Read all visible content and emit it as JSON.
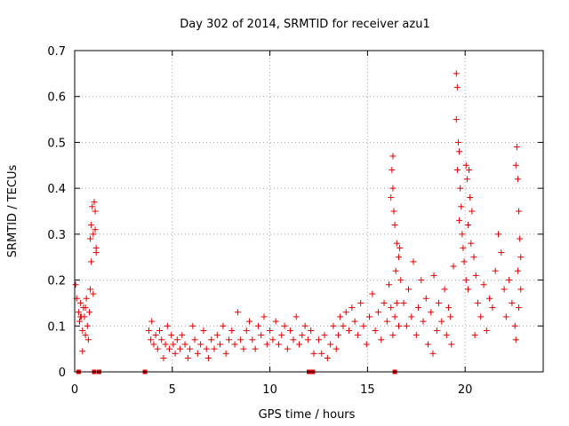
{
  "chart_data": {
    "type": "scatter",
    "title": "Day 302 of 2014, SRMTID for receiver azu1",
    "xlabel": "GPS time / hours",
    "ylabel": "SRMTID / TECUs",
    "xlim": [
      0,
      24
    ],
    "ylim": [
      0,
      0.7
    ],
    "xticks": [
      "0",
      "5",
      "10",
      "15",
      "20"
    ],
    "yticks": [
      "0",
      "0.1",
      "0.2",
      "0.3",
      "0.4",
      "0.5",
      "0.6",
      "0.7"
    ],
    "grid": true,
    "marker": "+",
    "color": "#e00000",
    "series": [
      {
        "name": "SRMTID",
        "points": [
          [
            0.05,
            0.19
          ],
          [
            0.1,
            0.16
          ],
          [
            0.2,
            0.13
          ],
          [
            0.25,
            0.11
          ],
          [
            0.3,
            0.15
          ],
          [
            0.35,
            0.12
          ],
          [
            0.4,
            0.09
          ],
          [
            0.45,
            0.14
          ],
          [
            0.5,
            0.12
          ],
          [
            0.55,
            0.08
          ],
          [
            0.6,
            0.16
          ],
          [
            0.65,
            0.1
          ],
          [
            0.7,
            0.07
          ],
          [
            0.75,
            0.13
          ],
          [
            0.8,
            0.18
          ],
          [
            0.85,
            0.24
          ],
          [
            0.8,
            0.29
          ],
          [
            0.85,
            0.32
          ],
          [
            0.9,
            0.36
          ],
          [
            0.95,
            0.3
          ],
          [
            1.0,
            0.37
          ],
          [
            1.05,
            0.35
          ],
          [
            1.1,
            0.27
          ],
          [
            1.1,
            0.26
          ],
          [
            1.05,
            0.31
          ],
          [
            0.95,
            0.17
          ],
          [
            0.4,
            0.045
          ],
          [
            0.3,
            0.12
          ],
          [
            0.55,
            0.14
          ],
          [
            3.8,
            0.09
          ],
          [
            3.9,
            0.07
          ],
          [
            3.95,
            0.11
          ],
          [
            4.05,
            0.06
          ],
          [
            4.15,
            0.08
          ],
          [
            4.25,
            0.05
          ],
          [
            4.35,
            0.09
          ],
          [
            4.45,
            0.07
          ],
          [
            4.55,
            0.03
          ],
          [
            4.65,
            0.06
          ],
          [
            4.75,
            0.1
          ],
          [
            4.85,
            0.05
          ],
          [
            4.95,
            0.08
          ],
          [
            5.05,
            0.06
          ],
          [
            5.15,
            0.04
          ],
          [
            5.25,
            0.07
          ],
          [
            5.4,
            0.05
          ],
          [
            5.5,
            0.08
          ],
          [
            5.65,
            0.06
          ],
          [
            5.8,
            0.03
          ],
          [
            5.9,
            0.05
          ],
          [
            6.05,
            0.1
          ],
          [
            6.15,
            0.07
          ],
          [
            6.3,
            0.04
          ],
          [
            6.45,
            0.06
          ],
          [
            6.6,
            0.09
          ],
          [
            6.75,
            0.05
          ],
          [
            6.85,
            0.03
          ],
          [
            7.0,
            0.07
          ],
          [
            7.15,
            0.05
          ],
          [
            7.3,
            0.08
          ],
          [
            7.45,
            0.06
          ],
          [
            7.6,
            0.1
          ],
          [
            7.75,
            0.04
          ],
          [
            7.9,
            0.07
          ],
          [
            8.05,
            0.09
          ],
          [
            8.2,
            0.06
          ],
          [
            8.35,
            0.13
          ],
          [
            8.5,
            0.07
          ],
          [
            8.65,
            0.05
          ],
          [
            8.8,
            0.09
          ],
          [
            8.95,
            0.11
          ],
          [
            9.1,
            0.07
          ],
          [
            9.25,
            0.05
          ],
          [
            9.4,
            0.1
          ],
          [
            9.55,
            0.08
          ],
          [
            9.7,
            0.12
          ],
          [
            9.85,
            0.06
          ],
          [
            10.0,
            0.09
          ],
          [
            10.15,
            0.07
          ],
          [
            10.3,
            0.11
          ],
          [
            10.45,
            0.06
          ],
          [
            10.6,
            0.08
          ],
          [
            10.75,
            0.1
          ],
          [
            10.9,
            0.05
          ],
          [
            11.05,
            0.09
          ],
          [
            11.2,
            0.07
          ],
          [
            11.35,
            0.12
          ],
          [
            11.5,
            0.06
          ],
          [
            11.65,
            0.08
          ],
          [
            11.8,
            0.1
          ],
          [
            11.95,
            0.07
          ],
          [
            12.1,
            0.09
          ],
          [
            12.25,
            0.04
          ],
          [
            12.5,
            0.07
          ],
          [
            12.65,
            0.04
          ],
          [
            12.8,
            0.08
          ],
          [
            12.95,
            0.03
          ],
          [
            13.1,
            0.06
          ],
          [
            13.25,
            0.1
          ],
          [
            13.4,
            0.05
          ],
          [
            13.5,
            0.08
          ],
          [
            13.6,
            0.12
          ],
          [
            13.75,
            0.1
          ],
          [
            13.9,
            0.13
          ],
          [
            14.05,
            0.09
          ],
          [
            14.2,
            0.14
          ],
          [
            14.35,
            0.11
          ],
          [
            14.5,
            0.08
          ],
          [
            14.65,
            0.15
          ],
          [
            14.8,
            0.1
          ],
          [
            14.95,
            0.06
          ],
          [
            15.1,
            0.12
          ],
          [
            15.25,
            0.17
          ],
          [
            15.4,
            0.09
          ],
          [
            15.55,
            0.13
          ],
          [
            15.7,
            0.07
          ],
          [
            15.85,
            0.15
          ],
          [
            16.0,
            0.11
          ],
          [
            16.1,
            0.19
          ],
          [
            16.2,
            0.14
          ],
          [
            16.3,
            0.08
          ],
          [
            16.4,
            0.12
          ],
          [
            16.5,
            0.15
          ],
          [
            16.6,
            0.1
          ],
          [
            16.7,
            0.2
          ],
          [
            16.3,
            0.47
          ],
          [
            16.25,
            0.44
          ],
          [
            16.3,
            0.4
          ],
          [
            16.35,
            0.35
          ],
          [
            16.2,
            0.38
          ],
          [
            16.4,
            0.32
          ],
          [
            16.5,
            0.28
          ],
          [
            16.6,
            0.25
          ],
          [
            16.45,
            0.22
          ],
          [
            16.65,
            0.27
          ],
          [
            16.85,
            0.15
          ],
          [
            17.0,
            0.1
          ],
          [
            17.1,
            0.18
          ],
          [
            17.25,
            0.12
          ],
          [
            17.35,
            0.24
          ],
          [
            17.5,
            0.08
          ],
          [
            17.6,
            0.14
          ],
          [
            17.75,
            0.2
          ],
          [
            17.85,
            0.11
          ],
          [
            18.0,
            0.16
          ],
          [
            18.1,
            0.06
          ],
          [
            18.25,
            0.13
          ],
          [
            18.4,
            0.21
          ],
          [
            18.55,
            0.09
          ],
          [
            18.65,
            0.15
          ],
          [
            18.8,
            0.11
          ],
          [
            18.95,
            0.18
          ],
          [
            19.05,
            0.08
          ],
          [
            19.15,
            0.14
          ],
          [
            19.25,
            0.12
          ],
          [
            19.4,
            0.23
          ],
          [
            19.55,
            0.65
          ],
          [
            19.6,
            0.62
          ],
          [
            19.55,
            0.55
          ],
          [
            19.65,
            0.5
          ],
          [
            19.7,
            0.48
          ],
          [
            19.6,
            0.44
          ],
          [
            19.75,
            0.4
          ],
          [
            19.8,
            0.36
          ],
          [
            19.7,
            0.33
          ],
          [
            19.85,
            0.3
          ],
          [
            19.9,
            0.27
          ],
          [
            19.95,
            0.24
          ],
          [
            20.05,
            0.2
          ],
          [
            20.15,
            0.18
          ],
          [
            20.05,
            0.45
          ],
          [
            20.1,
            0.42
          ],
          [
            20.2,
            0.44
          ],
          [
            20.25,
            0.38
          ],
          [
            20.35,
            0.35
          ],
          [
            20.15,
            0.32
          ],
          [
            20.3,
            0.28
          ],
          [
            20.45,
            0.25
          ],
          [
            20.55,
            0.21
          ],
          [
            20.65,
            0.15
          ],
          [
            20.8,
            0.12
          ],
          [
            20.95,
            0.19
          ],
          [
            21.1,
            0.09
          ],
          [
            21.25,
            0.16
          ],
          [
            21.4,
            0.14
          ],
          [
            21.55,
            0.22
          ],
          [
            21.7,
            0.3
          ],
          [
            21.85,
            0.26
          ],
          [
            22.0,
            0.18
          ],
          [
            22.1,
            0.12
          ],
          [
            22.25,
            0.2
          ],
          [
            22.4,
            0.15
          ],
          [
            22.55,
            0.1
          ],
          [
            22.6,
            0.07
          ],
          [
            22.65,
            0.49
          ],
          [
            22.6,
            0.45
          ],
          [
            22.7,
            0.42
          ],
          [
            22.75,
            0.35
          ],
          [
            22.8,
            0.29
          ],
          [
            22.85,
            0.25
          ],
          [
            22.7,
            0.22
          ],
          [
            22.85,
            0.18
          ],
          [
            22.75,
            0.14
          ],
          [
            20.5,
            0.08
          ],
          [
            19.3,
            0.06
          ],
          [
            18.35,
            0.04
          ]
        ]
      }
    ],
    "gap_markers": [
      0.2,
      1.0,
      1.25,
      3.6,
      12.0,
      12.2,
      16.4
    ]
  }
}
